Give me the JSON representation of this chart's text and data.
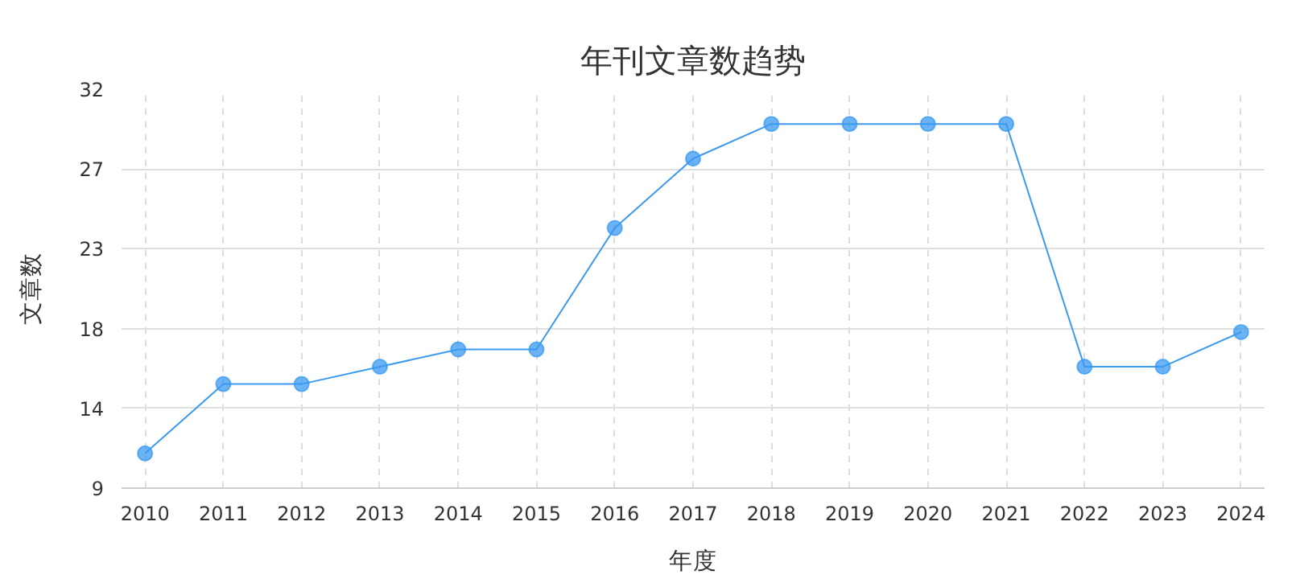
{
  "chart_data": {
    "type": "line",
    "title": "年刊文章数趋势",
    "xlabel": "年度",
    "ylabel": "文章数",
    "categories": [
      "2010",
      "2011",
      "2012",
      "2013",
      "2014",
      "2015",
      "2016",
      "2017",
      "2018",
      "2019",
      "2020",
      "2021",
      "2022",
      "2023",
      "2024"
    ],
    "series": [
      {
        "color": "#3a9af0",
        "values": [
          11,
          15,
          15,
          16,
          17,
          17,
          24,
          28,
          30,
          30,
          30,
          30,
          16,
          16,
          18
        ]
      }
    ],
    "ylim": [
      9,
      32
    ],
    "yticks": [
      9,
      {
        "value": 13.6,
        "label": "14"
      },
      {
        "value": 18.2,
        "label": "18"
      },
      {
        "value": 22.8,
        "label": "23"
      },
      {
        "value": 27.4,
        "label": "27"
      },
      32
    ],
    "grid": true,
    "marker": "circle",
    "line_style": "solid"
  }
}
